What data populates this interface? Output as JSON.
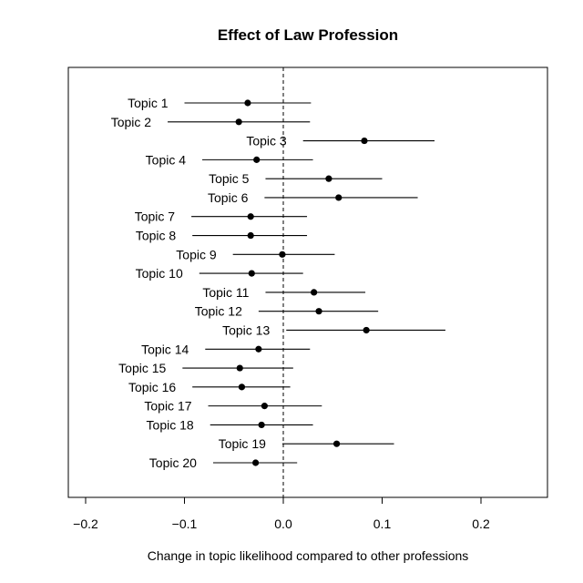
{
  "chart_data": {
    "type": "forest",
    "title": "Effect of Law Profession",
    "xlabel": "Change in topic likelihood compared to other professions",
    "ylabel": "",
    "xlim": [
      -0.2,
      0.2
    ],
    "x_ticks": [
      -0.2,
      -0.1,
      0.0,
      0.1,
      0.2
    ],
    "x_tick_labels": [
      "−0.2",
      "−0.1",
      "0.0",
      "0.1",
      "0.2"
    ],
    "reference_line": 0.0,
    "grid": false,
    "series": [
      {
        "label": "Topic 1",
        "estimate": -0.036,
        "lower": -0.1,
        "upper": 0.028
      },
      {
        "label": "Topic 2",
        "estimate": -0.045,
        "lower": -0.117,
        "upper": 0.027
      },
      {
        "label": "Topic 3",
        "estimate": 0.082,
        "lower": 0.02,
        "upper": 0.153
      },
      {
        "label": "Topic 4",
        "estimate": -0.027,
        "lower": -0.082,
        "upper": 0.03
      },
      {
        "label": "Topic 5",
        "estimate": 0.046,
        "lower": -0.018,
        "upper": 0.1
      },
      {
        "label": "Topic 6",
        "estimate": 0.056,
        "lower": -0.019,
        "upper": 0.136
      },
      {
        "label": "Topic 7",
        "estimate": -0.033,
        "lower": -0.093,
        "upper": 0.024
      },
      {
        "label": "Topic 8",
        "estimate": -0.033,
        "lower": -0.092,
        "upper": 0.024
      },
      {
        "label": "Topic 9",
        "estimate": -0.001,
        "lower": -0.051,
        "upper": 0.052
      },
      {
        "label": "Topic 10",
        "estimate": -0.032,
        "lower": -0.085,
        "upper": 0.02
      },
      {
        "label": "Topic 11",
        "estimate": 0.031,
        "lower": -0.018,
        "upper": 0.083
      },
      {
        "label": "Topic 12",
        "estimate": 0.036,
        "lower": -0.025,
        "upper": 0.096
      },
      {
        "label": "Topic 13",
        "estimate": 0.084,
        "lower": 0.003,
        "upper": 0.164
      },
      {
        "label": "Topic 14",
        "estimate": -0.025,
        "lower": -0.079,
        "upper": 0.027
      },
      {
        "label": "Topic 15",
        "estimate": -0.044,
        "lower": -0.102,
        "upper": 0.01
      },
      {
        "label": "Topic 16",
        "estimate": -0.042,
        "lower": -0.092,
        "upper": 0.007
      },
      {
        "label": "Topic 17",
        "estimate": -0.019,
        "lower": -0.076,
        "upper": 0.039
      },
      {
        "label": "Topic 18",
        "estimate": -0.022,
        "lower": -0.074,
        "upper": 0.03
      },
      {
        "label": "Topic 19",
        "estimate": 0.054,
        "lower": -0.001,
        "upper": 0.112
      },
      {
        "label": "Topic 20",
        "estimate": -0.028,
        "lower": -0.071,
        "upper": 0.014
      }
    ]
  }
}
